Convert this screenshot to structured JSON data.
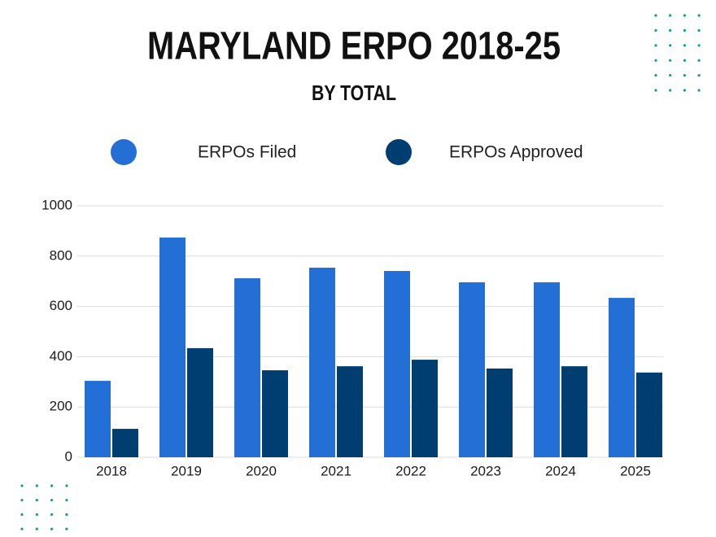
{
  "chart_data": {
    "type": "bar",
    "title": "MARYLAND ERPO 2018-25",
    "subtitle": "BY TOTAL",
    "categories": [
      "2018",
      "2019",
      "2020",
      "2021",
      "2022",
      "2023",
      "2024",
      "2025"
    ],
    "series": [
      {
        "name": "ERPOs Filed",
        "color": "#236fd6",
        "values": [
          304,
          874,
          712,
          754,
          741,
          696,
          696,
          634
        ]
      },
      {
        "name": "ERPOs Approved",
        "color": "#003e72",
        "values": [
          113,
          434,
          346,
          362,
          388,
          353,
          362,
          337
        ]
      }
    ],
    "ylim": [
      0,
      1000
    ],
    "yticks": [
      0,
      200,
      400,
      600,
      800,
      1000
    ],
    "grid": true
  }
}
